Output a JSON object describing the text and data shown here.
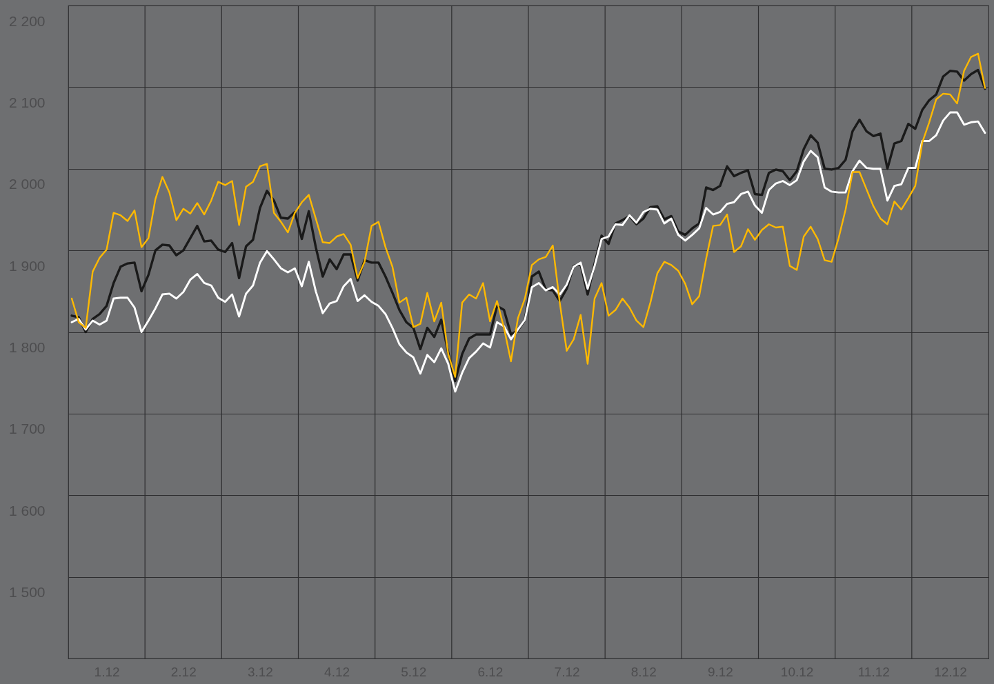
{
  "chart_data": {
    "type": "line",
    "categories": [
      null,
      null,
      null,
      null,
      null,
      "1.12",
      null,
      null,
      null,
      null,
      null,
      null,
      null,
      null,
      null,
      null,
      "2.12",
      null,
      null,
      null,
      null,
      null,
      null,
      null,
      null,
      null,
      null,
      "3.12",
      null,
      null,
      null,
      null,
      null,
      null,
      null,
      null,
      null,
      null,
      "4.12",
      null,
      null,
      null,
      null,
      null,
      null,
      null,
      null,
      null,
      null,
      "5.12",
      null,
      null,
      null,
      null,
      null,
      null,
      null,
      null,
      null,
      null,
      "6.12",
      null,
      null,
      null,
      null,
      null,
      null,
      null,
      null,
      null,
      null,
      "7.12",
      null,
      null,
      null,
      null,
      null,
      null,
      null,
      null,
      null,
      null,
      "8.12",
      null,
      null,
      null,
      null,
      null,
      null,
      null,
      null,
      null,
      null,
      "9.12",
      null,
      null,
      null,
      null,
      null,
      null,
      null,
      null,
      null,
      null,
      "10.12",
      null,
      null,
      null,
      null,
      null,
      null,
      null,
      null,
      null,
      null,
      "11.12",
      null,
      null,
      null,
      null,
      null,
      null,
      null,
      null,
      null,
      null,
      "12.12",
      null,
      null,
      null,
      null,
      null
    ],
    "ylim": [
      1400,
      2200
    ],
    "yticks": [
      {
        "value": 1500,
        "label": "1 500"
      },
      {
        "value": 1600,
        "label": "1 600"
      },
      {
        "value": 1700,
        "label": "1 700"
      },
      {
        "value": 1800,
        "label": "1 800"
      },
      {
        "value": 1900,
        "label": "1 900"
      },
      {
        "value": 2000,
        "label": "2 000"
      },
      {
        "value": 2100,
        "label": "2 100"
      },
      {
        "value": 2200,
        "label": "2 200"
      }
    ],
    "grid": true,
    "line_style": "solid",
    "series": [
      {
        "color": "#1a1a1a",
        "values": [
          1820,
          1818,
          1800,
          1816,
          1822,
          1832,
          1860,
          1880,
          1884,
          1885,
          1850,
          1870,
          1900,
          1907,
          1906,
          1894,
          1900,
          1915,
          1930,
          1911,
          1912,
          1901,
          1898,
          1909,
          1866,
          1905,
          1913,
          1952,
          1973,
          1961,
          1940,
          1939,
          1947,
          1914,
          1948,
          1904,
          1868,
          1889,
          1877,
          1895,
          1895,
          1863,
          1888,
          1885,
          1885,
          1868,
          1848,
          1827,
          1812,
          1805,
          1779,
          1805,
          1794,
          1815,
          1775,
          1740,
          1773,
          1792,
          1797,
          1797,
          1797,
          1832,
          1827,
          1797,
          1802,
          1815,
          1868,
          1874,
          1852,
          1851,
          1838,
          1853,
          1881,
          1883,
          1846,
          1884,
          1918,
          1908,
          1933,
          1937,
          1942,
          1932,
          1939,
          1953,
          1954,
          1938,
          1942,
          1923,
          1919,
          1927,
          1933,
          1977,
          1974,
          1979,
          2003,
          1991,
          1995,
          1998,
          1969,
          1968,
          1995,
          1999,
          1997,
          1986,
          1997,
          2024,
          2041,
          2032,
          2000,
          1999,
          2001,
          2011,
          2046,
          2060,
          2046,
          2040,
          2043,
          2000,
          2031,
          2034,
          2055,
          2049,
          2072,
          2084,
          2091,
          2113,
          2120,
          2119,
          2108,
          2116,
          2121,
          2098
        ]
      },
      {
        "color": "#ffffff",
        "values": [
          1812,
          1816,
          1803,
          1814,
          1809,
          1814,
          1841,
          1842,
          1842,
          1830,
          1800,
          1814,
          1829,
          1846,
          1847,
          1841,
          1849,
          1864,
          1871,
          1860,
          1857,
          1842,
          1837,
          1846,
          1819,
          1847,
          1857,
          1885,
          1899,
          1889,
          1878,
          1873,
          1878,
          1856,
          1886,
          1850,
          1823,
          1835,
          1838,
          1856,
          1865,
          1838,
          1845,
          1837,
          1832,
          1822,
          1805,
          1785,
          1775,
          1769,
          1749,
          1772,
          1763,
          1780,
          1761,
          1727,
          1750,
          1768,
          1776,
          1786,
          1781,
          1812,
          1807,
          1791,
          1803,
          1815,
          1855,
          1860,
          1851,
          1855,
          1846,
          1858,
          1880,
          1885,
          1853,
          1881,
          1914,
          1917,
          1932,
          1931,
          1943,
          1934,
          1947,
          1951,
          1950,
          1933,
          1939,
          1919,
          1912,
          1919,
          1927,
          1952,
          1944,
          1947,
          1957,
          1959,
          1969,
          1972,
          1955,
          1946,
          1974,
          1982,
          1985,
          1980,
          1986,
          2009,
          2022,
          2014,
          1977,
          1972,
          1971,
          1971,
          1997,
          2010,
          2001,
          2000,
          2000,
          1961,
          1979,
          1981,
          2001,
          2001,
          2034,
          2034,
          2041,
          2059,
          2069,
          2069,
          2054,
          2057,
          2058,
          2044
        ]
      },
      {
        "color": "#ffb900",
        "values": [
          1841,
          1812,
          1805,
          1874,
          1891,
          1901,
          1946,
          1943,
          1936,
          1949,
          1904,
          1915,
          1963,
          1990,
          1971,
          1937,
          1951,
          1945,
          1958,
          1944,
          1961,
          1984,
          1980,
          1985,
          1931,
          1978,
          1984,
          2003,
          2006,
          1946,
          1935,
          1922,
          1946,
          1959,
          1968,
          1939,
          1910,
          1909,
          1917,
          1920,
          1907,
          1866,
          1886,
          1930,
          1935,
          1904,
          1880,
          1836,
          1842,
          1806,
          1810,
          1848,
          1813,
          1836,
          1773,
          1745,
          1836,
          1846,
          1841,
          1860,
          1813,
          1838,
          1805,
          1764,
          1817,
          1841,
          1882,
          1889,
          1892,
          1906,
          1836,
          1777,
          1791,
          1821,
          1761,
          1841,
          1860,
          1820,
          1827,
          1841,
          1830,
          1814,
          1806,
          1836,
          1872,
          1886,
          1882,
          1875,
          1859,
          1834,
          1844,
          1890,
          1930,
          1931,
          1944,
          1898,
          1905,
          1926,
          1913,
          1925,
          1932,
          1928,
          1929,
          1881,
          1876,
          1917,
          1929,
          1914,
          1888,
          1886,
          1915,
          1950,
          1996,
          1996,
          1975,
          1954,
          1939,
          1932,
          1960,
          1950,
          1964,
          1979,
          2032,
          2057,
          2085,
          2092,
          2091,
          2080,
          2120,
          2137,
          2141,
          2099
        ]
      }
    ]
  }
}
